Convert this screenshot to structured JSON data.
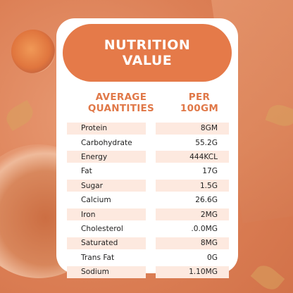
{
  "title_lines": [
    "NUTRITION",
    "VALUE"
  ],
  "columns": {
    "left": [
      "AVERAGE",
      "QUANTITIES"
    ],
    "right": [
      "PER",
      "100GM"
    ]
  },
  "rows": [
    {
      "name": "Protein",
      "value": "8GM"
    },
    {
      "name": "Carbohydrate",
      "value": "55.2G"
    },
    {
      "name": "Energy",
      "value": "444KCL"
    },
    {
      "name": "Fat",
      "value": "17G"
    },
    {
      "name": "Sugar",
      "value": "1.5G"
    },
    {
      "name": "Calcium",
      "value": "26.6G"
    },
    {
      "name": "Iron",
      "value": "2MG"
    },
    {
      "name": "Cholesterol",
      "value": ".0.0MG"
    },
    {
      "name": "Saturated",
      "value": "8MG"
    },
    {
      "name": "Trans Fat",
      "value": "0G"
    },
    {
      "name": "Sodium",
      "value": "1.10MG"
    }
  ],
  "colors": {
    "accent": "#e57a49",
    "heading_text": "#e07848",
    "row_stripe": "#fde9df"
  }
}
